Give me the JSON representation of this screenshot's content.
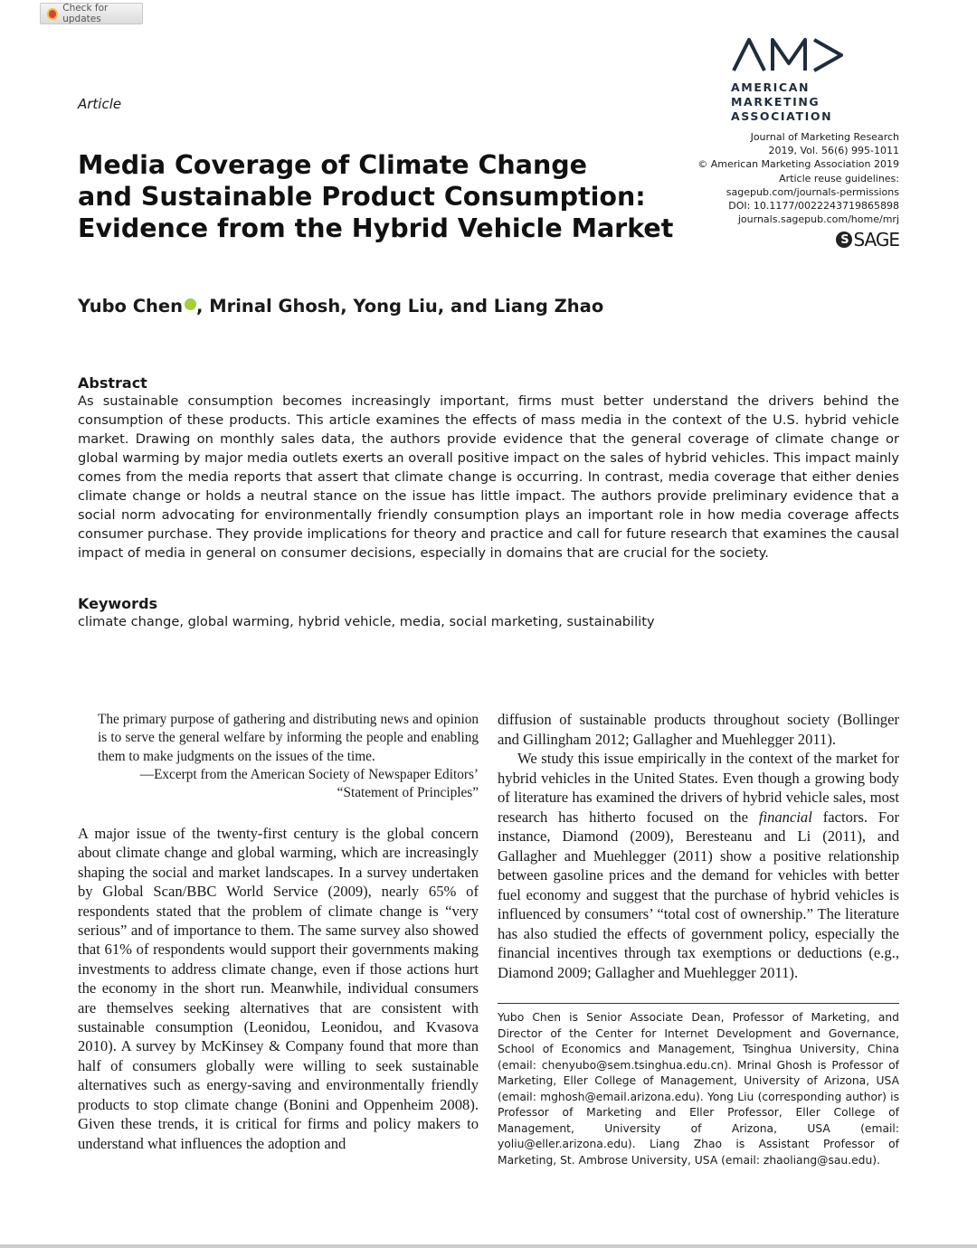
{
  "toolbar": {
    "check_updates_label": "Check for updates"
  },
  "publisher": {
    "logo_text": "AMA",
    "logo_line1": "AMERICAN MARKETING",
    "logo_line2": "ASSOCIATION",
    "sage_logo": "SAGE"
  },
  "article_type": "Article",
  "journal_info": [
    "Journal of Marketing Research",
    "2019, Vol. 56(6) 995-1011",
    "© American Marketing Association 2019",
    "Article reuse guidelines:",
    "sagepub.com/journals-permissions",
    "DOI: 10.1177/0022243719865898",
    "journals.sagepub.com/home/mrj"
  ],
  "title_lines": [
    "Media Coverage of Climate Change",
    "and Sustainable Product Consumption:",
    "Evidence from the Hybrid Vehicle Market"
  ],
  "authors": {
    "first": "Yubo Chen",
    "rest": ", Mrinal Ghosh, Yong Liu, and Liang Zhao"
  },
  "abstract": {
    "heading": "Abstract",
    "text": "As sustainable consumption becomes increasingly important, firms must better understand the drivers behind the consumption of these products. This article examines the effects of mass media in the context of the U.S. hybrid vehicle market. Drawing on monthly sales data, the authors provide evidence that the general coverage of climate change or global warming by major media outlets exerts an overall positive impact on the sales of hybrid vehicles. This impact mainly comes from the media reports that assert that climate change is occurring. In contrast, media coverage that either denies climate change or holds a neutral stance on the issue has little impact. The authors provide preliminary evidence that a social norm advocating for environmentally friendly consumption plays an important role in how media coverage affects consumer purchase. They provide implications for theory and practice and call for future research that examines the causal impact of media in general on consumer decisions, especially in domains that are crucial for the society."
  },
  "keywords": {
    "heading": "Keywords",
    "text": "climate change, global warming, hybrid vehicle, media, social marketing, sustainability"
  },
  "epigraph": {
    "text": "The primary purpose of gathering and distributing news and opinion is to serve the general welfare by informing the people and enabling them to make judgments on the issues of the time.",
    "source_line1": "—Excerpt from the American Society of Newspaper Editors’",
    "source_line2": "“Statement of Principles”"
  },
  "body_left": "A major issue of the twenty-first century is the global concern about climate change and global warming, which are increasingly shaping the social and market landscapes. In a survey undertaken by Global Scan/BBC World Service (2009), nearly 65% of respondents stated that the problem of climate change is “very serious” and of importance to them. The same survey also showed that 61% of respondents would support their governments making investments to address climate change, even if those actions hurt the economy in the short run. Meanwhile, individual consumers are themselves seeking alternatives that are consistent with sustainable consumption (Leonidou, Leonidou, and Kvasova 2010). A survey by McKinsey & Company found that more than half of consumers globally were willing to seek sustainable alternatives such as energy-saving and environmentally friendly products to stop climate change (Bonini and Oppenheim 2008). Given these trends, it is critical for firms and policy makers to understand what influences the adoption and",
  "body_right": {
    "p1": "diffusion of sustainable products throughout society (Bollinger and Gillingham 2012; Gallagher and Muehlegger 2011).",
    "p2_a": "We study this issue empirically in the context of the market for hybrid vehicles in the United States. Even though a growing body of literature has examined the drivers of hybrid vehicle sales, most research has hitherto focused on the ",
    "p2_em": "financial",
    "p2_b": " factors. For instance, Diamond (2009), Beresteanu and Li (2011), and Gallagher and Muehlegger (2011) show a positive relationship between gasoline prices and the demand for vehicles with better fuel economy and suggest that the purchase of hybrid vehicles is influenced by consumers’ “total cost of ownership.” The literature has also studied the effects of government policy, especially the financial incentives through tax exemptions or deductions (e.g., Diamond 2009; Gallagher and Muehlegger 2011)."
  },
  "footnote": "Yubo Chen is Senior Associate Dean, Professor of Marketing, and Director of the Center for Internet Development and Governance, School of Economics and Management, Tsinghua University, China (email: chenyubo@sem.tsinghua.edu.cn). Mrinal Ghosh is Professor of Marketing, Eller College of Management, University of Arizona, USA (email: mghosh@email.arizona.edu). Yong Liu (corresponding author) is Professor of Marketing and Eller Professor, Eller College of Management, University of Arizona, USA (email: yoliu@eller.arizona.edu). Liang Zhao is Assistant Professor of Marketing, St. Ambrose University, USA (email: zhaoliang@sau.edu)."
}
